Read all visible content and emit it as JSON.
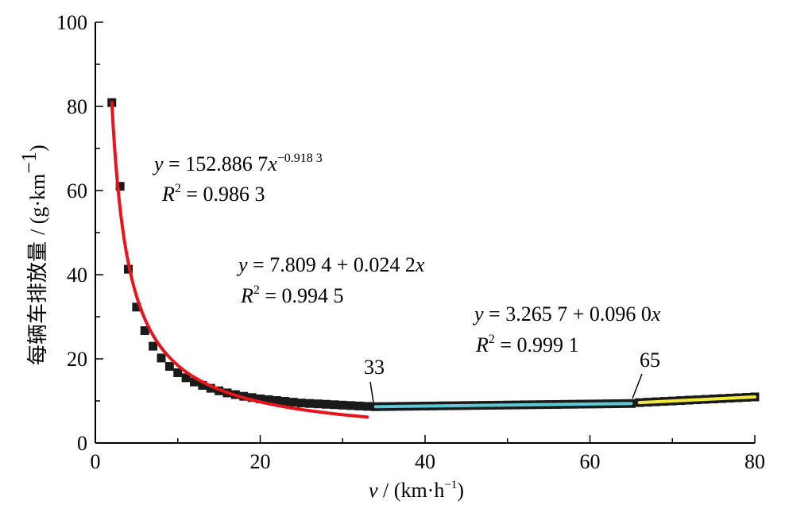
{
  "chart_data": {
    "type": "scatter",
    "xlabel": {
      "var": "v",
      "unit": "(km·h",
      "exp": "−1",
      "close": ")"
    },
    "ylabel": {
      "cjk": "每辆车排放量",
      "unit": "/ (g·km",
      "exp": "−1",
      "close": ")"
    },
    "xlim": [
      0,
      80
    ],
    "ylim": [
      0,
      100
    ],
    "x_ticks": [
      "0",
      "20",
      "40",
      "60",
      "80"
    ],
    "y_ticks": [
      "0",
      "20",
      "40",
      "60",
      "80",
      "100"
    ],
    "grid": false,
    "series": [
      {
        "kind": "points",
        "color": "#1a1a1a",
        "x": [
          2,
          3,
          4,
          5,
          6,
          7,
          8,
          9,
          10,
          11,
          12,
          13,
          14,
          15,
          16,
          17,
          18,
          19,
          20,
          21,
          22,
          23,
          24,
          25,
          26,
          27,
          28,
          29,
          30,
          31,
          32,
          33,
          34,
          35,
          36,
          37,
          38,
          39,
          40,
          41,
          42,
          43,
          44,
          45,
          46,
          47,
          48,
          49,
          50,
          51,
          52,
          53,
          54,
          55,
          56,
          57,
          58,
          59,
          60,
          61,
          62,
          63,
          64,
          65,
          66,
          67,
          68,
          69,
          70,
          71,
          72,
          73,
          74,
          75,
          76,
          77,
          78,
          79,
          80
        ],
        "y": [
          80.9,
          61.0,
          41.3,
          32.3,
          26.7,
          23.0,
          20.2,
          18.2,
          16.7,
          15.5,
          14.5,
          13.7,
          13.0,
          12.4,
          11.9,
          11.5,
          11.1,
          10.8,
          10.5,
          10.3,
          10.1,
          9.9,
          9.7,
          9.5,
          9.4,
          9.3,
          9.2,
          9.1,
          9.0,
          8.9,
          8.8,
          8.7,
          8.63,
          8.66,
          8.68,
          8.71,
          8.73,
          8.75,
          8.78,
          8.8,
          8.83,
          8.85,
          8.87,
          8.9,
          8.92,
          8.95,
          8.97,
          8.99,
          9.02,
          9.04,
          9.07,
          9.09,
          9.12,
          9.14,
          9.16,
          9.19,
          9.21,
          9.24,
          9.26,
          9.28,
          9.31,
          9.33,
          9.36,
          9.38,
          9.6,
          9.7,
          9.79,
          9.89,
          9.98,
          10.08,
          10.18,
          10.27,
          10.37,
          10.47,
          10.56,
          10.66,
          10.75,
          10.85,
          10.95
        ]
      },
      {
        "kind": "power-fit",
        "color": "#e8141b",
        "coef": 152.8867,
        "exponent": -0.9183,
        "x_range": [
          2,
          33
        ]
      },
      {
        "kind": "linear-fit",
        "color": "#5ec8d4",
        "intercept": 7.8094,
        "slope": 0.0242,
        "x_range": [
          34,
          65
        ]
      },
      {
        "kind": "linear-fit",
        "color": "#f1ea3a",
        "intercept": 3.2657,
        "slope": 0.096,
        "x_range": [
          66,
          80
        ]
      }
    ],
    "annotations": {
      "eq1": {
        "y": "y",
        "eq": " = 152.886 7",
        "x": "x",
        "exp": "−0.918 3",
        "r": "R",
        "r2": "2",
        "rval": " = 0.986 3"
      },
      "eq2": {
        "y": "y",
        "eq": " = 7.809 4 + 0.024 2",
        "x": "x",
        "r": "R",
        "r2": "2",
        "rval": " = 0.994 5"
      },
      "eq3": {
        "y": "y",
        "eq": " = 3.265 7 + 0.096 0",
        "x": "x",
        "r": "R",
        "r2": "2",
        "rval": " = 0.999 1"
      },
      "breakpoint1": "33",
      "breakpoint2": "65"
    }
  }
}
